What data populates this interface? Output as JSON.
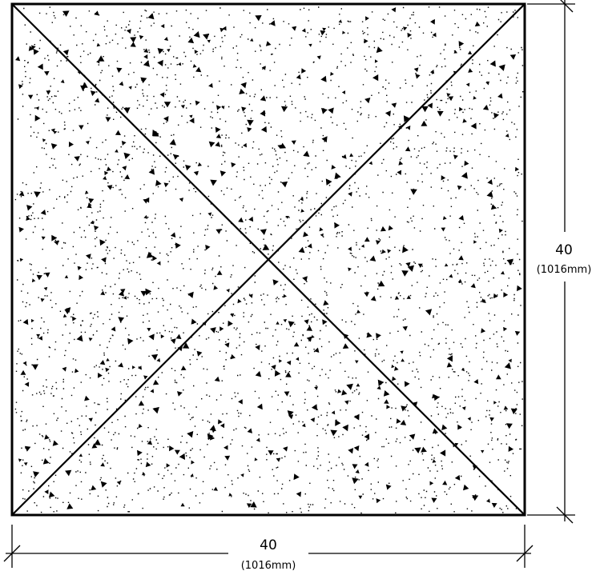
{
  "drawing": {
    "subject": "square concrete slab plan",
    "width_dimension": {
      "value": "40",
      "metric": "(1016mm)"
    },
    "height_dimension": {
      "value": "40",
      "metric": "(1016mm)"
    },
    "fill_pattern": "concrete-stipple",
    "diagonals": 2,
    "line_color": "#000000"
  }
}
